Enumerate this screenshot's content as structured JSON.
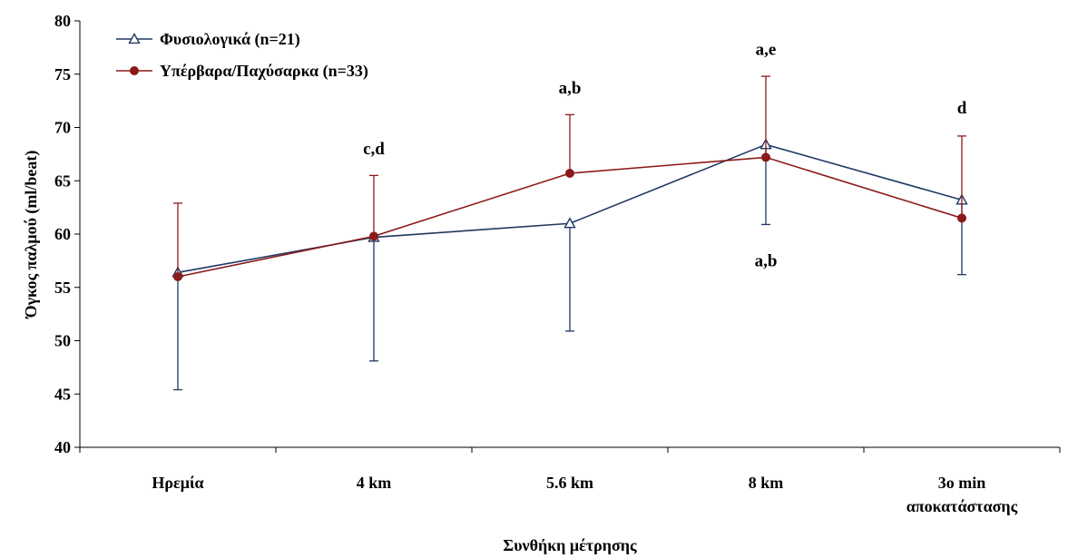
{
  "chart_data": {
    "type": "line",
    "title": "",
    "xlabel": "Συνθήκη μέτρησης",
    "ylabel": "Όγκος παλμού (ml/beat)",
    "ylim": [
      40,
      80
    ],
    "yticks": [
      40,
      45,
      50,
      55,
      60,
      65,
      70,
      75,
      80
    ],
    "grid": false,
    "legend_position": "top-left",
    "categories": [
      [
        "Ηρεμία"
      ],
      [
        "4 km"
      ],
      [
        "5.6 km"
      ],
      [
        "8 km"
      ],
      [
        "3o  min",
        "αποκατάστασης"
      ]
    ],
    "series": [
      {
        "name": "Φυσιολογικά (n=21)",
        "color": "#1F3864",
        "marker": "triangle-open",
        "values": [
          56.4,
          59.7,
          61.0,
          68.4,
          63.2
        ],
        "error_lower": [
          11.0,
          11.6,
          10.1,
          7.5,
          7.0
        ],
        "error_upper": [
          0,
          0,
          0,
          0,
          0
        ]
      },
      {
        "name": "Υπέρβαρα/Παχύσαρκα (n=33)",
        "color": "#8B1A1A",
        "marker": "circle-filled",
        "values": [
          56.0,
          59.8,
          65.7,
          67.2,
          61.5
        ],
        "error_lower": [
          0,
          0,
          0,
          0,
          0
        ],
        "error_upper": [
          6.9,
          5.7,
          5.5,
          7.6,
          7.7
        ]
      }
    ],
    "annotations": [
      {
        "text": "c,d",
        "category_index": 1,
        "y": 67.5
      },
      {
        "text": "a,b",
        "category_index": 2,
        "y": 73.2
      },
      {
        "text": "a,e",
        "category_index": 3,
        "y": 76.8
      },
      {
        "text": "a,b",
        "category_index": 3,
        "y": 57.0
      },
      {
        "text": "d",
        "category_index": 4,
        "y": 71.3
      }
    ]
  }
}
